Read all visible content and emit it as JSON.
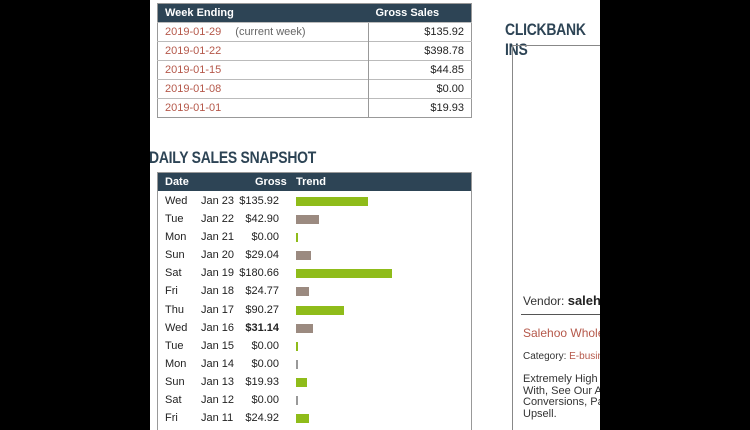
{
  "weekly": {
    "headers": [
      "Week Ending",
      "Gross Sales"
    ],
    "rows": [
      {
        "week": "2019-01-29",
        "note": "(current week)",
        "gross": "$135.92"
      },
      {
        "week": "2019-01-22",
        "note": "",
        "gross": "$398.78"
      },
      {
        "week": "2019-01-15",
        "note": "",
        "gross": "$44.85"
      },
      {
        "week": "2019-01-08",
        "note": "",
        "gross": "$0.00"
      },
      {
        "week": "2019-01-01",
        "note": "",
        "gross": "$19.93"
      }
    ]
  },
  "daily": {
    "title": "DAILY SALES SNAPSHOT",
    "headers": [
      "Date",
      "Gross",
      "Trend"
    ],
    "colors": {
      "green": "#8fbc1a",
      "taupe": "#9b8a80"
    },
    "rows": [
      {
        "day": "Wed",
        "date": "Jan 23",
        "gross": "$135.92",
        "value": 135.92,
        "color": "green"
      },
      {
        "day": "Tue",
        "date": "Jan 22",
        "gross": "$42.90",
        "value": 42.9,
        "color": "taupe"
      },
      {
        "day": "Mon",
        "date": "Jan 21",
        "gross": "$0.00",
        "value": 0,
        "color": "green"
      },
      {
        "day": "Sun",
        "date": "Jan 20",
        "gross": "$29.04",
        "value": 29.04,
        "color": "taupe"
      },
      {
        "day": "Sat",
        "date": "Jan 19",
        "gross": "$180.66",
        "value": 180.66,
        "color": "green"
      },
      {
        "day": "Fri",
        "date": "Jan 18",
        "gross": "$24.77",
        "value": 24.77,
        "color": "taupe"
      },
      {
        "day": "Thu",
        "date": "Jan 17",
        "gross": "$90.27",
        "value": 90.27,
        "color": "green"
      },
      {
        "day": "Wed",
        "date": "Jan 16",
        "gross": "$31.14",
        "value": 31.14,
        "color": "taupe",
        "bold": true
      },
      {
        "day": "Tue",
        "date": "Jan 15",
        "gross": "$0.00",
        "value": 0,
        "color": "green"
      },
      {
        "day": "Mon",
        "date": "Jan 14",
        "gross": "$0.00",
        "value": 0,
        "color": "taupe"
      },
      {
        "day": "Sun",
        "date": "Jan 13",
        "gross": "$19.93",
        "value": 19.93,
        "color": "green"
      },
      {
        "day": "Sat",
        "date": "Jan 12",
        "gross": "$0.00",
        "value": 0,
        "color": "taupe"
      },
      {
        "day": "Fri",
        "date": "Jan 11",
        "gross": "$24.92",
        "value": 24.92,
        "color": "green"
      }
    ]
  },
  "insights": {
    "title": "CLICKBANK INS",
    "vendor_label": "Vendor:",
    "vendor": "saleho",
    "product": "Salehoo Wholes",
    "category_label": "Category:",
    "category": "E-busin",
    "description": [
      "Extremely High N",
      "With, See Our Aff",
      "Conversions, Part",
      "Upsell."
    ]
  }
}
